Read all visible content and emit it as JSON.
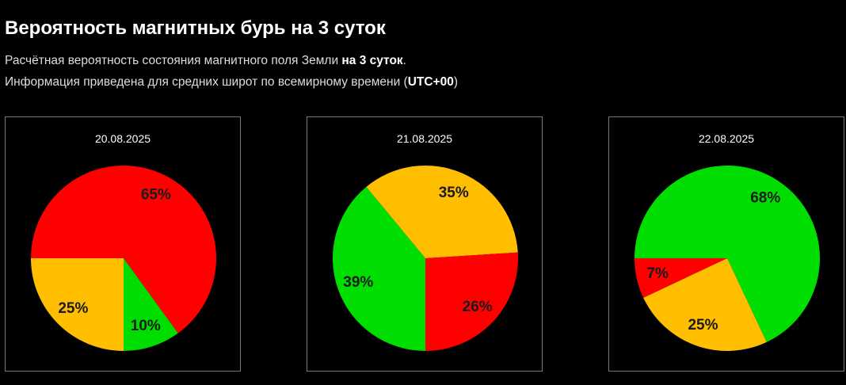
{
  "title": "Вероятность магнитных бурь на 3 суток",
  "description": {
    "line1_prefix": "Расчётная вероятность состояния магнитного поля Земли ",
    "line1_bold": "на 3 суток",
    "line1_suffix": ".",
    "line2_prefix": "Информация приведена для средних широт по всемирному времени (",
    "line2_bold": "UTC+00",
    "line2_suffix": ")"
  },
  "colors": {
    "green": "#00dd00",
    "yellow": "#ffbe00",
    "red": "#ff0000"
  },
  "chart_data": [
    {
      "type": "pie",
      "title": "20.08.2025",
      "slices": [
        {
          "label": "65%",
          "value": 65,
          "color": "#ff0000"
        },
        {
          "label": "10%",
          "value": 10,
          "color": "#00dd00"
        },
        {
          "label": "25%",
          "value": 25,
          "color": "#ffbe00"
        }
      ]
    },
    {
      "type": "pie",
      "title": "21.08.2025",
      "slices": [
        {
          "label": "39%",
          "value": 39,
          "color": "#00dd00"
        },
        {
          "label": "35%",
          "value": 35,
          "color": "#ffbe00"
        },
        {
          "label": "26%",
          "value": 26,
          "color": "#ff0000"
        }
      ]
    },
    {
      "type": "pie",
      "title": "22.08.2025",
      "slices": [
        {
          "label": "68%",
          "value": 68,
          "color": "#00dd00"
        },
        {
          "label": "25%",
          "value": 25,
          "color": "#ffbe00"
        },
        {
          "label": "7%",
          "value": 7,
          "color": "#ff0000"
        }
      ]
    }
  ]
}
